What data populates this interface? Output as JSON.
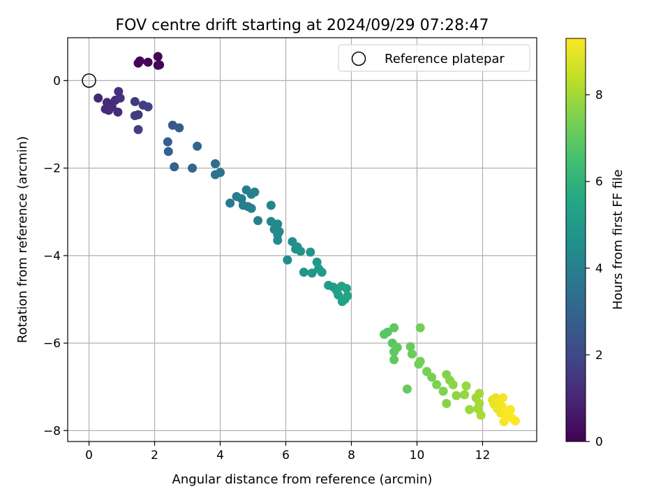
{
  "chart_data": {
    "type": "scatter",
    "title": "FOV centre drift starting at 2024/09/29 07:28:47",
    "xlabel": "Angular distance from reference (arcmin)",
    "ylabel": "Rotation from reference (arcmin)",
    "xlim": [
      -0.65,
      13.65
    ],
    "ylim": [
      -8.25,
      0.98
    ],
    "xticks": [
      0,
      2,
      4,
      6,
      8,
      10,
      12
    ],
    "xtick_labels": [
      "0",
      "2",
      "4",
      "6",
      "8",
      "10",
      "12"
    ],
    "yticks": [
      0,
      -2,
      -4,
      -6,
      -8
    ],
    "ytick_labels": [
      "0",
      "−2",
      "−4",
      "−6",
      "−8"
    ],
    "grid": true,
    "legend": {
      "location": "upper right",
      "entries": [
        "Reference platepar"
      ]
    },
    "reference_point": {
      "x": 0,
      "y": 0,
      "marker": "open-circle",
      "label": "Reference platepar"
    },
    "colorbar": {
      "label": "Hours from first FF file",
      "colormap": "viridis",
      "range": [
        0,
        9.3
      ],
      "ticks": [
        0,
        2,
        4,
        6,
        8
      ],
      "tick_labels": [
        "0",
        "2",
        "4",
        "6",
        "8"
      ]
    },
    "points": [
      {
        "x": 1.55,
        "y": 0.45,
        "c": 0.1
      },
      {
        "x": 1.5,
        "y": 0.4,
        "c": 0.1
      },
      {
        "x": 1.8,
        "y": 0.42,
        "c": 0.1
      },
      {
        "x": 2.1,
        "y": 0.55,
        "c": 0.1
      },
      {
        "x": 2.1,
        "y": 0.35,
        "c": 0.1
      },
      {
        "x": 2.15,
        "y": 0.36,
        "c": 0.1
      },
      {
        "x": 0.28,
        "y": -0.4,
        "c": 1.0
      },
      {
        "x": 0.5,
        "y": -0.65,
        "c": 1.05
      },
      {
        "x": 0.55,
        "y": -0.5,
        "c": 1.1
      },
      {
        "x": 0.6,
        "y": -0.68,
        "c": 1.1
      },
      {
        "x": 0.7,
        "y": -0.6,
        "c": 1.15
      },
      {
        "x": 0.8,
        "y": -0.45,
        "c": 1.2
      },
      {
        "x": 0.88,
        "y": -0.72,
        "c": 1.2
      },
      {
        "x": 0.9,
        "y": -0.25,
        "c": 1.25
      },
      {
        "x": 0.95,
        "y": -0.4,
        "c": 1.3
      },
      {
        "x": 1.4,
        "y": -0.48,
        "c": 1.55
      },
      {
        "x": 1.4,
        "y": -0.8,
        "c": 1.6
      },
      {
        "x": 1.5,
        "y": -0.78,
        "c": 1.6
      },
      {
        "x": 1.5,
        "y": -1.12,
        "c": 1.7
      },
      {
        "x": 1.65,
        "y": -0.56,
        "c": 1.7
      },
      {
        "x": 1.8,
        "y": -0.6,
        "c": 1.75
      },
      {
        "x": 2.55,
        "y": -1.02,
        "c": 2.6
      },
      {
        "x": 2.75,
        "y": -1.08,
        "c": 2.7
      },
      {
        "x": 2.4,
        "y": -1.4,
        "c": 2.8
      },
      {
        "x": 2.42,
        "y": -1.62,
        "c": 2.85
      },
      {
        "x": 2.6,
        "y": -1.97,
        "c": 2.9
      },
      {
        "x": 3.15,
        "y": -2.0,
        "c": 3.0
      },
      {
        "x": 3.3,
        "y": -1.5,
        "c": 3.05
      },
      {
        "x": 3.85,
        "y": -1.9,
        "c": 3.4
      },
      {
        "x": 3.85,
        "y": -2.15,
        "c": 3.45
      },
      {
        "x": 4.0,
        "y": -2.1,
        "c": 3.5
      },
      {
        "x": 4.3,
        "y": -2.8,
        "c": 3.75
      },
      {
        "x": 4.5,
        "y": -2.65,
        "c": 3.85
      },
      {
        "x": 4.65,
        "y": -2.7,
        "c": 3.9
      },
      {
        "x": 4.7,
        "y": -2.85,
        "c": 3.9
      },
      {
        "x": 4.8,
        "y": -2.5,
        "c": 3.95
      },
      {
        "x": 4.85,
        "y": -2.88,
        "c": 3.95
      },
      {
        "x": 4.95,
        "y": -2.6,
        "c": 4.0
      },
      {
        "x": 4.95,
        "y": -2.92,
        "c": 4.0
      },
      {
        "x": 5.05,
        "y": -2.55,
        "c": 4.0
      },
      {
        "x": 5.15,
        "y": -3.2,
        "c": 4.05
      },
      {
        "x": 5.55,
        "y": -2.85,
        "c": 4.2
      },
      {
        "x": 5.55,
        "y": -3.22,
        "c": 4.25
      },
      {
        "x": 5.65,
        "y": -3.4,
        "c": 4.3
      },
      {
        "x": 5.75,
        "y": -3.28,
        "c": 4.3
      },
      {
        "x": 5.75,
        "y": -3.52,
        "c": 4.35
      },
      {
        "x": 5.8,
        "y": -3.45,
        "c": 4.35
      },
      {
        "x": 5.75,
        "y": -3.65,
        "c": 4.4
      },
      {
        "x": 6.05,
        "y": -4.1,
        "c": 4.5
      },
      {
        "x": 6.2,
        "y": -3.68,
        "c": 4.6
      },
      {
        "x": 6.3,
        "y": -3.85,
        "c": 4.65
      },
      {
        "x": 6.35,
        "y": -3.8,
        "c": 4.7
      },
      {
        "x": 6.45,
        "y": -3.9,
        "c": 4.75
      },
      {
        "x": 6.55,
        "y": -4.38,
        "c": 4.8
      },
      {
        "x": 6.75,
        "y": -3.92,
        "c": 4.85
      },
      {
        "x": 6.8,
        "y": -4.4,
        "c": 4.85
      },
      {
        "x": 6.95,
        "y": -4.15,
        "c": 4.9
      },
      {
        "x": 7.0,
        "y": -4.3,
        "c": 5.0
      },
      {
        "x": 7.1,
        "y": -4.38,
        "c": 5.0
      },
      {
        "x": 7.3,
        "y": -4.68,
        "c": 5.1
      },
      {
        "x": 7.45,
        "y": -4.72,
        "c": 5.15
      },
      {
        "x": 7.55,
        "y": -4.8,
        "c": 5.2
      },
      {
        "x": 7.6,
        "y": -4.9,
        "c": 5.25
      },
      {
        "x": 7.7,
        "y": -4.7,
        "c": 5.3
      },
      {
        "x": 7.72,
        "y": -5.05,
        "c": 5.35
      },
      {
        "x": 7.8,
        "y": -5.0,
        "c": 5.4
      },
      {
        "x": 7.85,
        "y": -4.75,
        "c": 5.4
      },
      {
        "x": 7.88,
        "y": -4.92,
        "c": 5.45
      },
      {
        "x": 9.0,
        "y": -5.8,
        "c": 6.8
      },
      {
        "x": 9.1,
        "y": -5.75,
        "c": 6.85
      },
      {
        "x": 9.25,
        "y": -6.0,
        "c": 6.9
      },
      {
        "x": 9.3,
        "y": -5.65,
        "c": 6.95
      },
      {
        "x": 9.3,
        "y": -6.2,
        "c": 6.95
      },
      {
        "x": 9.3,
        "y": -6.38,
        "c": 7.0
      },
      {
        "x": 9.4,
        "y": -6.1,
        "c": 7.0
      },
      {
        "x": 9.7,
        "y": -7.05,
        "c": 7.1
      },
      {
        "x": 9.8,
        "y": -6.08,
        "c": 7.15
      },
      {
        "x": 9.85,
        "y": -6.25,
        "c": 7.2
      },
      {
        "x": 10.05,
        "y": -6.48,
        "c": 7.3
      },
      {
        "x": 10.1,
        "y": -5.65,
        "c": 7.3
      },
      {
        "x": 10.1,
        "y": -6.42,
        "c": 7.3
      },
      {
        "x": 10.3,
        "y": -6.65,
        "c": 7.35
      },
      {
        "x": 10.45,
        "y": -6.78,
        "c": 7.4
      },
      {
        "x": 10.6,
        "y": -6.95,
        "c": 7.45
      },
      {
        "x": 10.8,
        "y": -7.1,
        "c": 7.5
      },
      {
        "x": 10.9,
        "y": -6.72,
        "c": 7.55
      },
      {
        "x": 10.9,
        "y": -7.38,
        "c": 7.6
      },
      {
        "x": 11.0,
        "y": -6.85,
        "c": 7.6
      },
      {
        "x": 11.1,
        "y": -6.95,
        "c": 7.65
      },
      {
        "x": 11.2,
        "y": -7.2,
        "c": 7.7
      },
      {
        "x": 11.45,
        "y": -7.18,
        "c": 7.8
      },
      {
        "x": 11.5,
        "y": -6.98,
        "c": 7.85
      },
      {
        "x": 11.6,
        "y": -7.52,
        "c": 7.9
      },
      {
        "x": 11.8,
        "y": -7.25,
        "c": 7.95
      },
      {
        "x": 11.85,
        "y": -7.5,
        "c": 8.0
      },
      {
        "x": 11.9,
        "y": -7.15,
        "c": 8.0
      },
      {
        "x": 11.9,
        "y": -7.38,
        "c": 8.05
      },
      {
        "x": 11.95,
        "y": -7.65,
        "c": 8.1
      },
      {
        "x": 12.3,
        "y": -7.3,
        "c": 8.9
      },
      {
        "x": 12.35,
        "y": -7.4,
        "c": 8.95
      },
      {
        "x": 12.4,
        "y": -7.25,
        "c": 9.0
      },
      {
        "x": 12.45,
        "y": -7.5,
        "c": 9.05
      },
      {
        "x": 12.5,
        "y": -7.35,
        "c": 9.1
      },
      {
        "x": 12.55,
        "y": -7.6,
        "c": 9.1
      },
      {
        "x": 12.6,
        "y": -7.45,
        "c": 9.15
      },
      {
        "x": 12.62,
        "y": -7.25,
        "c": 9.15
      },
      {
        "x": 12.65,
        "y": -7.8,
        "c": 9.2
      },
      {
        "x": 12.7,
        "y": -7.55,
        "c": 9.2
      },
      {
        "x": 12.75,
        "y": -7.68,
        "c": 9.25
      },
      {
        "x": 12.85,
        "y": -7.52,
        "c": 9.25
      },
      {
        "x": 12.9,
        "y": -7.72,
        "c": 9.28
      },
      {
        "x": 13.0,
        "y": -7.78,
        "c": 9.3
      }
    ]
  }
}
